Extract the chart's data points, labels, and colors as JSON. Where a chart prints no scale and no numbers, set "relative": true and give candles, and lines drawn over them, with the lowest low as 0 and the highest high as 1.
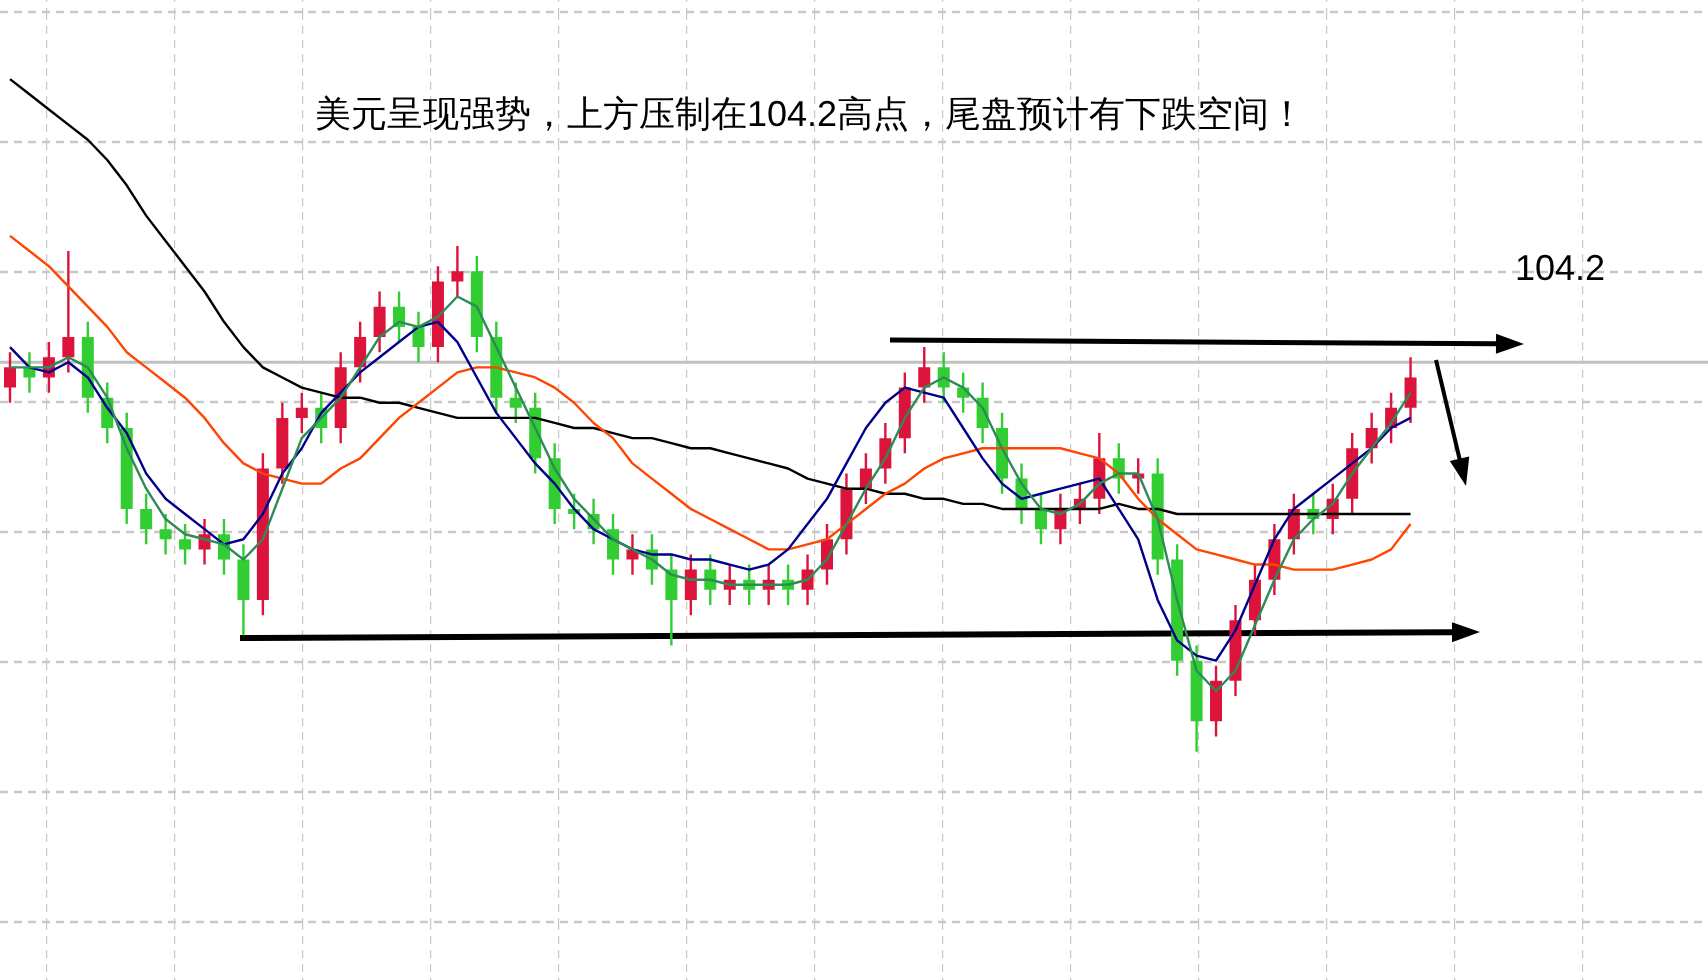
{
  "chart_data": {
    "type": "candlestick",
    "title": "美元呈现强势，上方压制在104.2高点，尾盘预计有下跌空间！",
    "relative": true,
    "grid": true,
    "annotations": [
      "104.2"
    ],
    "ref_lines": [
      {
        "axis": "y",
        "value": 0.77,
        "color": "#c0c0c0",
        "line_style": "solid"
      }
    ],
    "categories": [
      null,
      null,
      null,
      null,
      null,
      null,
      null,
      null,
      null,
      null,
      null,
      null,
      null,
      null,
      null,
      null,
      null,
      null,
      null,
      null,
      null,
      null,
      null,
      null,
      null,
      null,
      null,
      null,
      null,
      null,
      null,
      null,
      null,
      null,
      null,
      null,
      null,
      null,
      null,
      null,
      null,
      null,
      null,
      null,
      null,
      null,
      null,
      null,
      null,
      null,
      null,
      null,
      null,
      null,
      null,
      null,
      null,
      null,
      null,
      null,
      null,
      null,
      null,
      null,
      null,
      null,
      null,
      null,
      null,
      null,
      null,
      null,
      null
    ],
    "ohlc": [
      [
        0.72,
        0.79,
        0.69,
        0.76
      ],
      [
        0.76,
        0.79,
        0.71,
        0.74
      ],
      [
        0.74,
        0.81,
        0.71,
        0.78
      ],
      [
        0.78,
        0.99,
        0.75,
        0.82
      ],
      [
        0.82,
        0.85,
        0.67,
        0.7
      ],
      [
        0.7,
        0.73,
        0.61,
        0.64
      ],
      [
        0.64,
        0.67,
        0.45,
        0.48
      ],
      [
        0.48,
        0.51,
        0.41,
        0.44
      ],
      [
        0.44,
        0.47,
        0.39,
        0.42
      ],
      [
        0.42,
        0.45,
        0.37,
        0.4
      ],
      [
        0.4,
        0.46,
        0.37,
        0.43
      ],
      [
        0.43,
        0.46,
        0.35,
        0.38
      ],
      [
        0.38,
        0.41,
        0.23,
        0.3
      ],
      [
        0.3,
        0.59,
        0.27,
        0.56
      ],
      [
        0.56,
        0.69,
        0.53,
        0.66
      ],
      [
        0.66,
        0.71,
        0.63,
        0.68
      ],
      [
        0.68,
        0.71,
        0.61,
        0.64
      ],
      [
        0.64,
        0.79,
        0.61,
        0.76
      ],
      [
        0.76,
        0.85,
        0.73,
        0.82
      ],
      [
        0.82,
        0.91,
        0.79,
        0.88
      ],
      [
        0.88,
        0.91,
        0.81,
        0.84
      ],
      [
        0.84,
        0.87,
        0.77,
        0.8
      ],
      [
        0.8,
        0.96,
        0.77,
        0.93
      ],
      [
        0.93,
        1.0,
        0.9,
        0.95
      ],
      [
        0.95,
        0.98,
        0.79,
        0.82
      ],
      [
        0.82,
        0.85,
        0.67,
        0.7
      ],
      [
        0.7,
        0.73,
        0.65,
        0.68
      ],
      [
        0.68,
        0.71,
        0.55,
        0.58
      ],
      [
        0.58,
        0.61,
        0.45,
        0.48
      ],
      [
        0.48,
        0.51,
        0.44,
        0.47
      ],
      [
        0.47,
        0.5,
        0.41,
        0.44
      ],
      [
        0.44,
        0.47,
        0.35,
        0.38
      ],
      [
        0.38,
        0.43,
        0.35,
        0.4
      ],
      [
        0.4,
        0.43,
        0.33,
        0.36
      ],
      [
        0.36,
        0.39,
        0.21,
        0.3
      ],
      [
        0.3,
        0.39,
        0.27,
        0.36
      ],
      [
        0.36,
        0.39,
        0.29,
        0.32
      ],
      [
        0.32,
        0.37,
        0.29,
        0.34
      ],
      [
        0.34,
        0.37,
        0.29,
        0.32
      ],
      [
        0.32,
        0.37,
        0.29,
        0.34
      ],
      [
        0.34,
        0.37,
        0.29,
        0.32
      ],
      [
        0.32,
        0.39,
        0.29,
        0.36
      ],
      [
        0.36,
        0.45,
        0.33,
        0.42
      ],
      [
        0.42,
        0.55,
        0.39,
        0.52
      ],
      [
        0.52,
        0.59,
        0.49,
        0.56
      ],
      [
        0.56,
        0.65,
        0.53,
        0.62
      ],
      [
        0.62,
        0.75,
        0.59,
        0.72
      ],
      [
        0.72,
        0.8,
        0.69,
        0.76
      ],
      [
        0.76,
        0.79,
        0.69,
        0.72
      ],
      [
        0.72,
        0.75,
        0.67,
        0.7
      ],
      [
        0.7,
        0.73,
        0.61,
        0.64
      ],
      [
        0.64,
        0.67,
        0.51,
        0.54
      ],
      [
        0.54,
        0.57,
        0.45,
        0.48
      ],
      [
        0.48,
        0.51,
        0.41,
        0.44
      ],
      [
        0.44,
        0.51,
        0.41,
        0.48
      ],
      [
        0.48,
        0.53,
        0.45,
        0.5
      ],
      [
        0.5,
        0.63,
        0.47,
        0.58
      ],
      [
        0.58,
        0.61,
        0.51,
        0.54
      ],
      [
        0.54,
        0.58,
        0.51,
        0.55
      ],
      [
        0.55,
        0.58,
        0.35,
        0.38
      ],
      [
        0.38,
        0.41,
        0.15,
        0.18
      ],
      [
        0.18,
        0.21,
        0.0,
        0.06
      ],
      [
        0.06,
        0.17,
        0.03,
        0.14
      ],
      [
        0.14,
        0.29,
        0.11,
        0.26
      ],
      [
        0.26,
        0.37,
        0.23,
        0.34
      ],
      [
        0.34,
        0.45,
        0.31,
        0.42
      ],
      [
        0.42,
        0.51,
        0.39,
        0.48
      ],
      [
        0.48,
        0.51,
        0.43,
        0.46
      ],
      [
        0.46,
        0.53,
        0.43,
        0.5
      ],
      [
        0.5,
        0.63,
        0.47,
        0.6
      ],
      [
        0.6,
        0.67,
        0.57,
        0.64
      ],
      [
        0.64,
        0.71,
        0.61,
        0.68
      ],
      [
        0.68,
        0.78,
        0.65,
        0.74
      ]
    ],
    "series": [
      {
        "type": "line",
        "color": "#000000",
        "values": [
          1.33,
          1.3,
          1.27,
          1.24,
          1.21,
          1.17,
          1.12,
          1.06,
          1.01,
          0.96,
          0.91,
          0.85,
          0.8,
          0.76,
          0.74,
          0.72,
          0.71,
          0.7,
          0.7,
          0.69,
          0.69,
          0.68,
          0.67,
          0.66,
          0.66,
          0.66,
          0.66,
          0.66,
          0.65,
          0.64,
          0.64,
          0.63,
          0.62,
          0.62,
          0.61,
          0.6,
          0.6,
          0.59,
          0.58,
          0.57,
          0.56,
          0.54,
          0.53,
          0.52,
          0.52,
          0.51,
          0.51,
          0.5,
          0.5,
          0.49,
          0.49,
          0.48,
          0.48,
          0.48,
          0.48,
          0.48,
          0.48,
          0.49,
          0.48,
          0.48,
          0.47,
          0.47,
          0.47,
          0.47,
          0.47,
          0.47,
          0.47,
          0.47,
          0.47,
          0.47,
          0.47,
          0.47,
          0.47
        ]
      },
      {
        "type": "line",
        "color": "#ff4500",
        "values": [
          1.02,
          0.99,
          0.96,
          0.92,
          0.88,
          0.84,
          0.79,
          0.76,
          0.73,
          0.7,
          0.66,
          0.61,
          0.57,
          0.55,
          0.54,
          0.53,
          0.53,
          0.56,
          0.58,
          0.62,
          0.66,
          0.69,
          0.72,
          0.75,
          0.76,
          0.76,
          0.75,
          0.74,
          0.72,
          0.69,
          0.65,
          0.62,
          0.57,
          0.54,
          0.51,
          0.48,
          0.46,
          0.44,
          0.42,
          0.4,
          0.4,
          0.41,
          0.42,
          0.45,
          0.48,
          0.51,
          0.53,
          0.56,
          0.58,
          0.59,
          0.6,
          0.6,
          0.6,
          0.6,
          0.6,
          0.59,
          0.58,
          0.55,
          0.5,
          0.46,
          0.43,
          0.4,
          0.39,
          0.38,
          0.37,
          0.37,
          0.36,
          0.36,
          0.36,
          0.37,
          0.38,
          0.4,
          0.45
        ]
      },
      {
        "type": "line",
        "color": "#00008b",
        "values": [
          0.8,
          0.76,
          0.75,
          0.77,
          0.74,
          0.68,
          0.63,
          0.55,
          0.5,
          0.47,
          0.44,
          0.41,
          0.42,
          0.47,
          0.55,
          0.6,
          0.67,
          0.71,
          0.75,
          0.78,
          0.81,
          0.84,
          0.85,
          0.81,
          0.74,
          0.67,
          0.62,
          0.57,
          0.53,
          0.48,
          0.44,
          0.42,
          0.4,
          0.39,
          0.39,
          0.38,
          0.38,
          0.37,
          0.36,
          0.37,
          0.4,
          0.45,
          0.5,
          0.57,
          0.64,
          0.69,
          0.72,
          0.71,
          0.7,
          0.64,
          0.58,
          0.53,
          0.5,
          0.51,
          0.52,
          0.53,
          0.54,
          0.48,
          0.42,
          0.3,
          0.22,
          0.19,
          0.18,
          0.24,
          0.33,
          0.42,
          0.48,
          0.51,
          0.54,
          0.57,
          0.6,
          0.64,
          0.66
        ]
      },
      {
        "type": "line",
        "color": "#2e8b57",
        "values": [
          0.76,
          0.76,
          0.76,
          0.78,
          0.76,
          0.7,
          0.6,
          0.52,
          0.46,
          0.43,
          0.42,
          0.41,
          0.38,
          0.42,
          0.52,
          0.62,
          0.66,
          0.7,
          0.76,
          0.82,
          0.85,
          0.84,
          0.86,
          0.9,
          0.88,
          0.8,
          0.72,
          0.64,
          0.56,
          0.5,
          0.46,
          0.42,
          0.4,
          0.38,
          0.35,
          0.34,
          0.34,
          0.33,
          0.33,
          0.33,
          0.33,
          0.34,
          0.38,
          0.45,
          0.52,
          0.58,
          0.66,
          0.72,
          0.74,
          0.72,
          0.68,
          0.6,
          0.53,
          0.48,
          0.47,
          0.49,
          0.53,
          0.55,
          0.55,
          0.46,
          0.3,
          0.16,
          0.12,
          0.16,
          0.25,
          0.34,
          0.42,
          0.46,
          0.49,
          0.55,
          0.6,
          0.65,
          0.71
        ]
      }
    ]
  }
}
